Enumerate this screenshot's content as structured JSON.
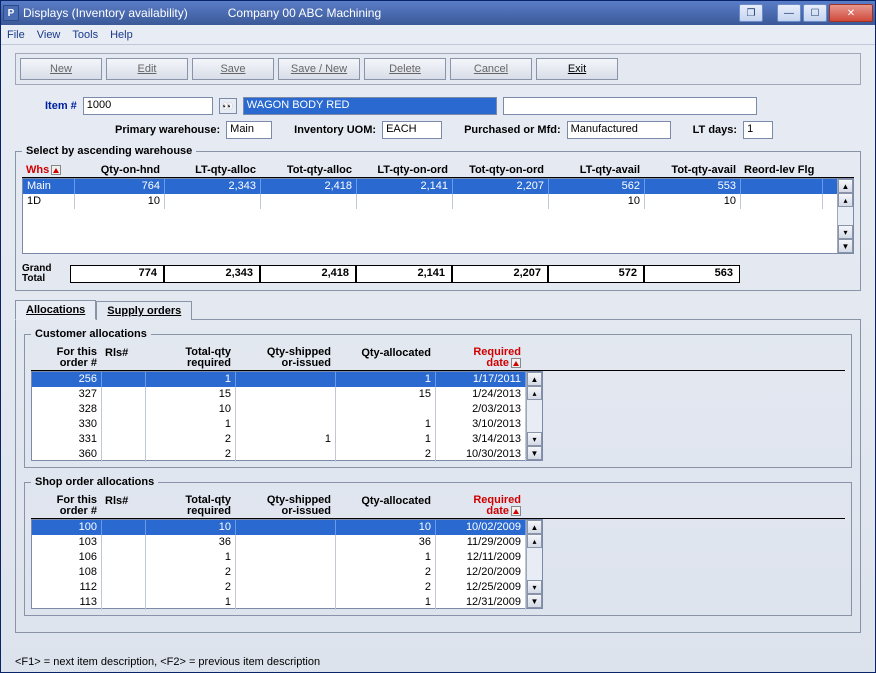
{
  "window": {
    "title": "Displays (Inventory availability)",
    "company": "Company 00  ABC Machining"
  },
  "menu": {
    "file": "File",
    "view": "View",
    "tools": "Tools",
    "help": "Help"
  },
  "toolbar": {
    "new": "New",
    "edit": "Edit",
    "save": "Save",
    "savenew": "Save / New",
    "delete": "Delete",
    "cancel": "Cancel",
    "exit": "Exit"
  },
  "form": {
    "item_lbl": "Item #",
    "item_val": "1000",
    "desc_val": "WAGON BODY RED",
    "pw_lbl": "Primary warehouse:",
    "pw_val": "Main",
    "uom_lbl": "Inventory UOM:",
    "uom_val": "EACH",
    "pom_lbl": "Purchased or Mfd:",
    "pom_val": "Manufactured",
    "lt_lbl": "LT days:",
    "lt_val": "1"
  },
  "whs_group": {
    "legend": "Select by ascending warehouse",
    "hdr": {
      "whs": "Whs",
      "qoh": "Qty-on-hnd",
      "lqa": "LT-qty-alloc",
      "tqa": "Tot-qty-alloc",
      "lqo": "LT-qty-on-ord",
      "tqo": "Tot-qty-on-ord",
      "lav": "LT-qty-avail",
      "tav": "Tot-qty-avail",
      "rlf": "Reord-lev Flg"
    },
    "rows": [
      {
        "whs": "Main",
        "qoh": "764",
        "lqa": "2,343",
        "tqa": "2,418",
        "lqo": "2,141",
        "tqo": "2,207",
        "lav": "562",
        "tav": "553",
        "sel": true
      },
      {
        "whs": "1D",
        "qoh": "10",
        "lqa": "",
        "tqa": "",
        "lqo": "",
        "tqo": "",
        "lav": "10",
        "tav": "10",
        "sel": false
      }
    ],
    "grand_lbl": "Grand Total",
    "grand": {
      "qoh": "774",
      "lqa": "2,343",
      "tqa": "2,418",
      "lqo": "2,141",
      "tqo": "2,207",
      "lav": "572",
      "tav": "563"
    }
  },
  "tabs": {
    "alloc": "Allocations",
    "supply": "Supply orders"
  },
  "cust": {
    "legend": "Customer allocations",
    "hdr": {
      "ord": "For this\norder #",
      "rls": "Rls#",
      "tq": "Total-qty\nrequired",
      "qs": "Qty-shipped\nor-issued",
      "qa": "Qty-allocated",
      "rd": "Required\ndate"
    },
    "rows": [
      {
        "ord": "256",
        "rls": "",
        "tq": "1",
        "qs": "",
        "qa": "1",
        "rd": "1/17/2011",
        "sel": true
      },
      {
        "ord": "327",
        "rls": "",
        "tq": "15",
        "qs": "",
        "qa": "15",
        "rd": "1/24/2013"
      },
      {
        "ord": "328",
        "rls": "",
        "tq": "10",
        "qs": "",
        "qa": "",
        "rd": "2/03/2013"
      },
      {
        "ord": "330",
        "rls": "",
        "tq": "1",
        "qs": "",
        "qa": "1",
        "rd": "3/10/2013"
      },
      {
        "ord": "331",
        "rls": "",
        "tq": "2",
        "qs": "1",
        "qa": "1",
        "rd": "3/14/2013"
      },
      {
        "ord": "360",
        "rls": "",
        "tq": "2",
        "qs": "",
        "qa": "2",
        "rd": "10/30/2013"
      }
    ]
  },
  "shop": {
    "legend": "Shop order allocations",
    "hdr": {
      "ord": "For this\norder #",
      "rls": "Rls#",
      "tq": "Total-qty\nrequired",
      "qs": "Qty-shipped\nor-issued",
      "qa": "Qty-allocated",
      "rd": "Required\ndate"
    },
    "rows": [
      {
        "ord": "100",
        "rls": "",
        "tq": "10",
        "qs": "",
        "qa": "10",
        "rd": "10/02/2009",
        "sel": true
      },
      {
        "ord": "103",
        "rls": "",
        "tq": "36",
        "qs": "",
        "qa": "36",
        "rd": "11/29/2009"
      },
      {
        "ord": "106",
        "rls": "",
        "tq": "1",
        "qs": "",
        "qa": "1",
        "rd": "12/11/2009"
      },
      {
        "ord": "108",
        "rls": "",
        "tq": "2",
        "qs": "",
        "qa": "2",
        "rd": "12/20/2009"
      },
      {
        "ord": "112",
        "rls": "",
        "tq": "2",
        "qs": "",
        "qa": "2",
        "rd": "12/25/2009"
      },
      {
        "ord": "113",
        "rls": "",
        "tq": "1",
        "qs": "",
        "qa": "1",
        "rd": "12/31/2009"
      }
    ]
  },
  "status": "<F1> = next item description, <F2> = previous item description"
}
